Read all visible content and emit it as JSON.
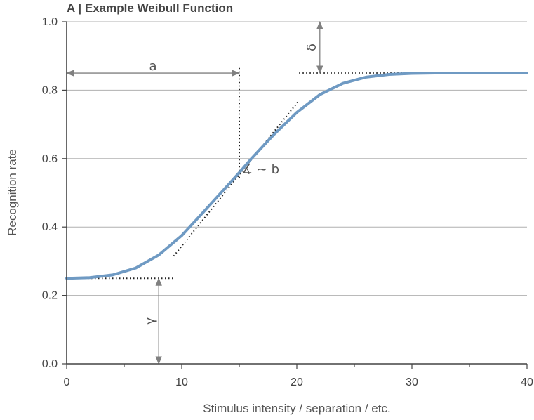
{
  "chart_data": {
    "type": "line",
    "title": "A | Example Weibull Function",
    "xlabel": "Stimulus intensity / separation / etc.",
    "ylabel": "Recognition rate",
    "xlim": [
      0,
      40
    ],
    "ylim": [
      0.0,
      1.0
    ],
    "x_ticks": [
      "0",
      "10",
      "20",
      "30",
      "40"
    ],
    "y_ticks": [
      "0.0",
      "0.2",
      "0.4",
      "0.6",
      "0.8",
      "1.0"
    ],
    "grid": "horizontal",
    "series": [
      {
        "color": "#6f9ac3",
        "x": [
          0,
          2,
          4,
          6,
          8,
          10,
          12,
          14,
          15,
          16,
          18,
          20,
          22,
          24,
          26,
          28,
          30,
          32,
          36,
          40
        ],
        "y": [
          0.25,
          0.252,
          0.26,
          0.28,
          0.318,
          0.375,
          0.448,
          0.522,
          0.559,
          0.598,
          0.67,
          0.735,
          0.787,
          0.82,
          0.838,
          0.846,
          0.849,
          0.85,
          0.85,
          0.85
        ]
      }
    ],
    "annotations": {
      "gamma": {
        "label": "γ",
        "value": 0.25,
        "x": 8
      },
      "delta": {
        "label": "δ",
        "value": 0.15,
        "x": 22
      },
      "a": {
        "label": "a",
        "value": 15,
        "y": 0.85
      },
      "b": {
        "label": "∡ ~ b",
        "x": 15,
        "y": 0.55
      }
    },
    "colors": {
      "curve": "#6f9ac3",
      "grid": "#b0b0b0",
      "axis": "#444444",
      "arrow": "#808080"
    }
  }
}
